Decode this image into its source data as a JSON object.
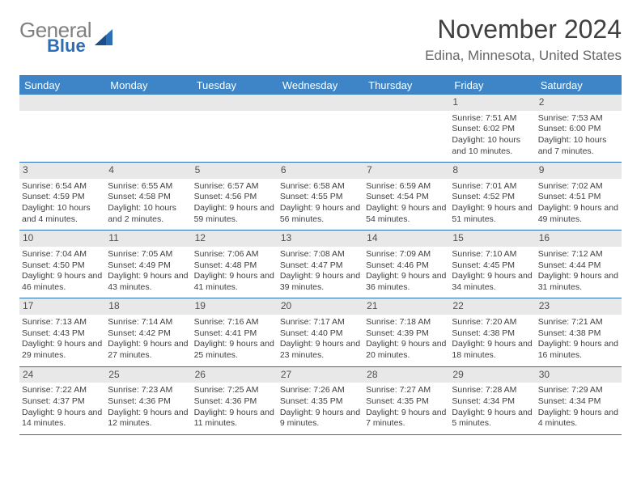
{
  "logo": {
    "word1": "General",
    "word2": "Blue"
  },
  "title": "November 2024",
  "location": "Edina, Minnesota, United States",
  "weekdays": [
    "Sunday",
    "Monday",
    "Tuesday",
    "Wednesday",
    "Thursday",
    "Friday",
    "Saturday"
  ],
  "colors": {
    "header_bg": "#3d85c6",
    "border": "#2d6fb6",
    "daynum_bg": "#e8e8e8"
  },
  "weeks": [
    [
      null,
      null,
      null,
      null,
      null,
      {
        "n": "1",
        "sr": "7:51 AM",
        "ss": "6:02 PM",
        "dl": "10 hours and 10 minutes."
      },
      {
        "n": "2",
        "sr": "7:53 AM",
        "ss": "6:00 PM",
        "dl": "10 hours and 7 minutes."
      }
    ],
    [
      {
        "n": "3",
        "sr": "6:54 AM",
        "ss": "4:59 PM",
        "dl": "10 hours and 4 minutes."
      },
      {
        "n": "4",
        "sr": "6:55 AM",
        "ss": "4:58 PM",
        "dl": "10 hours and 2 minutes."
      },
      {
        "n": "5",
        "sr": "6:57 AM",
        "ss": "4:56 PM",
        "dl": "9 hours and 59 minutes."
      },
      {
        "n": "6",
        "sr": "6:58 AM",
        "ss": "4:55 PM",
        "dl": "9 hours and 56 minutes."
      },
      {
        "n": "7",
        "sr": "6:59 AM",
        "ss": "4:54 PM",
        "dl": "9 hours and 54 minutes."
      },
      {
        "n": "8",
        "sr": "7:01 AM",
        "ss": "4:52 PM",
        "dl": "9 hours and 51 minutes."
      },
      {
        "n": "9",
        "sr": "7:02 AM",
        "ss": "4:51 PM",
        "dl": "9 hours and 49 minutes."
      }
    ],
    [
      {
        "n": "10",
        "sr": "7:04 AM",
        "ss": "4:50 PM",
        "dl": "9 hours and 46 minutes."
      },
      {
        "n": "11",
        "sr": "7:05 AM",
        "ss": "4:49 PM",
        "dl": "9 hours and 43 minutes."
      },
      {
        "n": "12",
        "sr": "7:06 AM",
        "ss": "4:48 PM",
        "dl": "9 hours and 41 minutes."
      },
      {
        "n": "13",
        "sr": "7:08 AM",
        "ss": "4:47 PM",
        "dl": "9 hours and 39 minutes."
      },
      {
        "n": "14",
        "sr": "7:09 AM",
        "ss": "4:46 PM",
        "dl": "9 hours and 36 minutes."
      },
      {
        "n": "15",
        "sr": "7:10 AM",
        "ss": "4:45 PM",
        "dl": "9 hours and 34 minutes."
      },
      {
        "n": "16",
        "sr": "7:12 AM",
        "ss": "4:44 PM",
        "dl": "9 hours and 31 minutes."
      }
    ],
    [
      {
        "n": "17",
        "sr": "7:13 AM",
        "ss": "4:43 PM",
        "dl": "9 hours and 29 minutes."
      },
      {
        "n": "18",
        "sr": "7:14 AM",
        "ss": "4:42 PM",
        "dl": "9 hours and 27 minutes."
      },
      {
        "n": "19",
        "sr": "7:16 AM",
        "ss": "4:41 PM",
        "dl": "9 hours and 25 minutes."
      },
      {
        "n": "20",
        "sr": "7:17 AM",
        "ss": "4:40 PM",
        "dl": "9 hours and 23 minutes."
      },
      {
        "n": "21",
        "sr": "7:18 AM",
        "ss": "4:39 PM",
        "dl": "9 hours and 20 minutes."
      },
      {
        "n": "22",
        "sr": "7:20 AM",
        "ss": "4:38 PM",
        "dl": "9 hours and 18 minutes."
      },
      {
        "n": "23",
        "sr": "7:21 AM",
        "ss": "4:38 PM",
        "dl": "9 hours and 16 minutes."
      }
    ],
    [
      {
        "n": "24",
        "sr": "7:22 AM",
        "ss": "4:37 PM",
        "dl": "9 hours and 14 minutes."
      },
      {
        "n": "25",
        "sr": "7:23 AM",
        "ss": "4:36 PM",
        "dl": "9 hours and 12 minutes."
      },
      {
        "n": "26",
        "sr": "7:25 AM",
        "ss": "4:36 PM",
        "dl": "9 hours and 11 minutes."
      },
      {
        "n": "27",
        "sr": "7:26 AM",
        "ss": "4:35 PM",
        "dl": "9 hours and 9 minutes."
      },
      {
        "n": "28",
        "sr": "7:27 AM",
        "ss": "4:35 PM",
        "dl": "9 hours and 7 minutes."
      },
      {
        "n": "29",
        "sr": "7:28 AM",
        "ss": "4:34 PM",
        "dl": "9 hours and 5 minutes."
      },
      {
        "n": "30",
        "sr": "7:29 AM",
        "ss": "4:34 PM",
        "dl": "9 hours and 4 minutes."
      }
    ]
  ]
}
